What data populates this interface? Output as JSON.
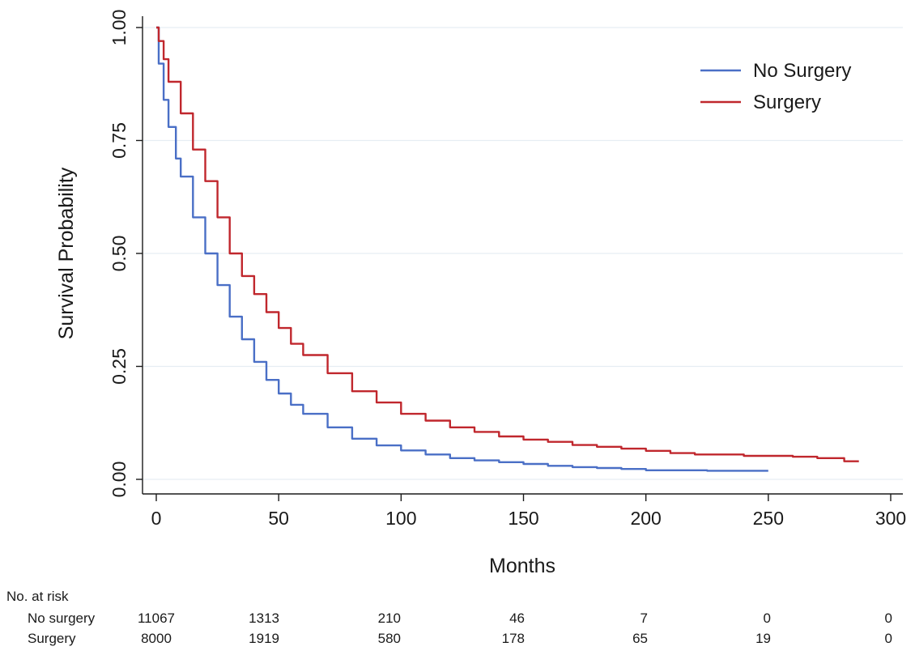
{
  "chart_data": {
    "type": "line",
    "title": "",
    "xlabel": "Months",
    "ylabel": "Survival Probability",
    "xlim": [
      0,
      300
    ],
    "ylim": [
      0,
      1
    ],
    "xticks": [
      "0",
      "50",
      "100",
      "150",
      "200",
      "250",
      "300"
    ],
    "yticks": [
      "0.00",
      "0.25",
      "0.50",
      "0.75",
      "1.00"
    ],
    "grid": "horizontal",
    "legend_position": "top-right",
    "series": [
      {
        "name": "No Surgery",
        "color": "#4a6fc6",
        "points": [
          [
            0,
            1.0
          ],
          [
            1,
            0.92
          ],
          [
            3,
            0.84
          ],
          [
            5,
            0.78
          ],
          [
            8,
            0.71
          ],
          [
            10,
            0.67
          ],
          [
            15,
            0.58
          ],
          [
            20,
            0.5
          ],
          [
            25,
            0.43
          ],
          [
            30,
            0.36
          ],
          [
            35,
            0.31
          ],
          [
            40,
            0.26
          ],
          [
            45,
            0.22
          ],
          [
            50,
            0.19
          ],
          [
            55,
            0.165
          ],
          [
            60,
            0.145
          ],
          [
            70,
            0.115
          ],
          [
            80,
            0.09
          ],
          [
            90,
            0.075
          ],
          [
            100,
            0.064
          ],
          [
            110,
            0.055
          ],
          [
            120,
            0.047
          ],
          [
            130,
            0.042
          ],
          [
            140,
            0.038
          ],
          [
            150,
            0.034
          ],
          [
            160,
            0.03
          ],
          [
            170,
            0.027
          ],
          [
            180,
            0.025
          ],
          [
            190,
            0.023
          ],
          [
            200,
            0.02
          ],
          [
            225,
            0.019
          ],
          [
            250,
            0.019
          ]
        ]
      },
      {
        "name": "Surgery",
        "color": "#c0272d",
        "points": [
          [
            0,
            1.0
          ],
          [
            1,
            0.97
          ],
          [
            3,
            0.93
          ],
          [
            5,
            0.88
          ],
          [
            10,
            0.81
          ],
          [
            15,
            0.73
          ],
          [
            20,
            0.66
          ],
          [
            25,
            0.58
          ],
          [
            30,
            0.5
          ],
          [
            35,
            0.45
          ],
          [
            40,
            0.41
          ],
          [
            45,
            0.37
          ],
          [
            50,
            0.335
          ],
          [
            55,
            0.3
          ],
          [
            60,
            0.275
          ],
          [
            70,
            0.235
          ],
          [
            80,
            0.195
          ],
          [
            90,
            0.17
          ],
          [
            100,
            0.145
          ],
          [
            110,
            0.13
          ],
          [
            120,
            0.115
          ],
          [
            130,
            0.105
          ],
          [
            140,
            0.095
          ],
          [
            150,
            0.088
          ],
          [
            160,
            0.083
          ],
          [
            170,
            0.076
          ],
          [
            180,
            0.072
          ],
          [
            190,
            0.068
          ],
          [
            200,
            0.063
          ],
          [
            210,
            0.058
          ],
          [
            220,
            0.055
          ],
          [
            240,
            0.052
          ],
          [
            260,
            0.05
          ],
          [
            270,
            0.047
          ],
          [
            280,
            0.047
          ],
          [
            281,
            0.04
          ],
          [
            287,
            0.04
          ]
        ]
      }
    ]
  },
  "risk_table": {
    "title": "No. at risk",
    "rows": [
      {
        "label": "No surgery",
        "values": [
          "11067",
          "1313",
          "210",
          "46",
          "7",
          "0",
          "0"
        ]
      },
      {
        "label": "Surgery",
        "values": [
          "8000",
          "1919",
          "580",
          "178",
          "65",
          "19",
          "0"
        ]
      }
    ]
  }
}
